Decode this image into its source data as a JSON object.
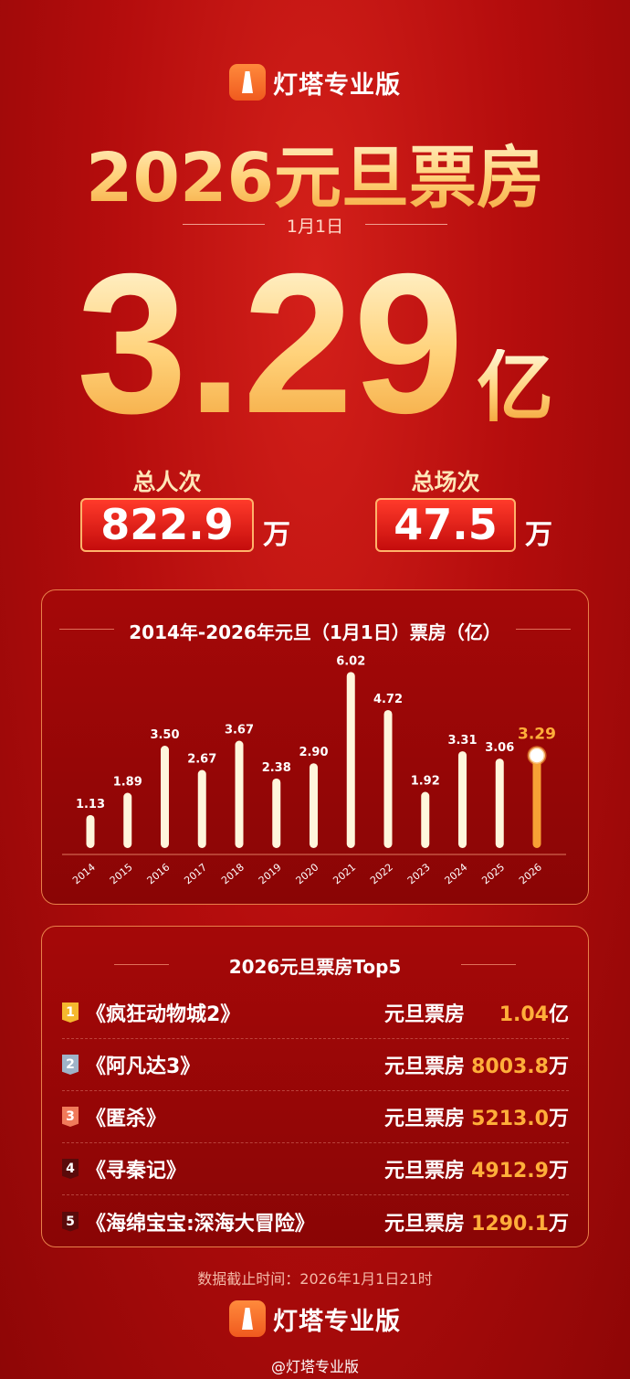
{
  "brand": {
    "name": "灯塔专业版"
  },
  "header": {
    "title": "2026元旦票房",
    "date": "1月1日",
    "total_box": "3.29",
    "total_unit": "亿"
  },
  "stats": [
    {
      "label": "总人次",
      "value": "822.9",
      "unit": "万"
    },
    {
      "label": "总场次",
      "value": "47.5",
      "unit": "万"
    }
  ],
  "colors": {
    "background": "#b50d0d",
    "accent": "#ffae3a",
    "bar": "#fff6dc",
    "highlight_bar": "#f7a035"
  },
  "chart_data": {
    "type": "bar",
    "title": "2014年-2026年元旦（1月1日）票房（亿）",
    "categories": [
      "2014",
      "2015",
      "2016",
      "2017",
      "2018",
      "2019",
      "2020",
      "2021",
      "2022",
      "2023",
      "2024",
      "2025",
      "2026"
    ],
    "values": [
      1.13,
      1.89,
      3.5,
      2.67,
      3.67,
      2.38,
      2.9,
      6.02,
      4.72,
      1.92,
      3.31,
      3.06,
      3.29
    ],
    "labels": [
      "1.13",
      "1.89",
      "3.50",
      "2.67",
      "3.67",
      "2.38",
      "2.90",
      "6.02",
      "4.72",
      "1.92",
      "3.31",
      "3.06",
      "3.29"
    ],
    "highlight": "2026",
    "ylim": [
      0,
      6.5
    ],
    "grid": false
  },
  "top5": {
    "title": "2026元旦票房Top5",
    "items": [
      {
        "rank": "1",
        "name": "《疯狂动物城2》",
        "label": "元旦票房",
        "value": "1.04",
        "unit": "亿",
        "badge_color": "#f5b82e"
      },
      {
        "rank": "2",
        "name": "《阿凡达3》",
        "label": "元旦票房",
        "value": "8003.8",
        "unit": "万",
        "badge_color": "#9fb3c8"
      },
      {
        "rank": "3",
        "name": "《匿杀》",
        "label": "元旦票房",
        "value": "5213.0",
        "unit": "万",
        "badge_color": "#f07a5a"
      },
      {
        "rank": "4",
        "name": "《寻秦记》",
        "label": "元旦票房",
        "value": "4912.9",
        "unit": "万",
        "badge_color": "#5a0a0a"
      },
      {
        "rank": "5",
        "name": "《海绵宝宝:深海大冒险》",
        "label": "元旦票房",
        "value": "1290.1",
        "unit": "万",
        "badge_color": "#5a0a0a"
      }
    ]
  },
  "footer": {
    "cutoff": "数据截止时间：2026年1月1日21时",
    "weibo": "@灯塔专业版"
  }
}
